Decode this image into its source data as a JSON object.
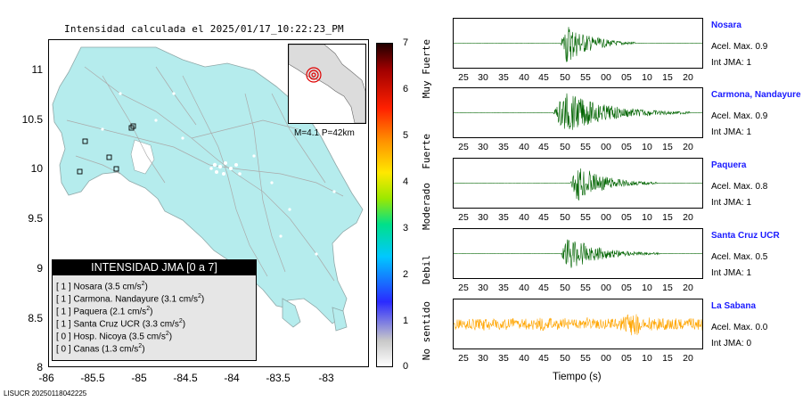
{
  "map": {
    "title": "Intensidad calculada el 2025/01/17_10:22:23_PM",
    "lat_ticks": [
      "11",
      "10.5",
      "10",
      "9.5",
      "9",
      "8.5",
      "8"
    ],
    "lon_ticks": [
      "-86",
      "-85.5",
      "-85",
      "-84.5",
      "-84",
      "-83.5",
      "-83"
    ],
    "inset_caption": "M=4.1 P=42km",
    "land_color": "#b5eced",
    "legend": {
      "header": "INTENSIDAD JMA [0 a 7]",
      "rows": [
        {
          "jma": "[ 1 ]",
          "name": "Nosara",
          "value": "(3.5 cm/s",
          "exp": "2",
          "close": ")"
        },
        {
          "jma": "[ 1 ]",
          "name": "Carmona. Nandayure",
          "value": "(3.1 cm/s",
          "exp": "2",
          "close": ")"
        },
        {
          "jma": "[ 1 ]",
          "name": "Paquera",
          "value": "(2.1 cm/s",
          "exp": "2",
          "close": ")"
        },
        {
          "jma": "[ 1 ]",
          "name": "Santa Cruz UCR",
          "value": "(3.3 cm/s",
          "exp": "2",
          "close": ")"
        },
        {
          "jma": "[ 0 ]",
          "name": "Hosp. Nicoya",
          "value": "(3.5 cm/s",
          "exp": "2",
          "close": ")"
        },
        {
          "jma": "[ 0 ]",
          "name": "Canas",
          "value": "(1.3 cm/s",
          "exp": "2",
          "close": ")"
        }
      ]
    }
  },
  "colorbar": {
    "ticks": [
      "7",
      "6",
      "5",
      "4",
      "3",
      "2",
      "1",
      "0"
    ],
    "words": [
      "Muy Fuerte",
      "Fuerte",
      "Moderado",
      "Debil",
      "No sentido"
    ]
  },
  "traces": {
    "x_ticks": [
      "25",
      "30",
      "35",
      "40",
      "45",
      "50",
      "55",
      "00",
      "05",
      "10",
      "15",
      "20"
    ],
    "x_label": "Tiempo (s)",
    "stations": [
      {
        "name": "Nosara",
        "acel": "Acel. Max. 0.9",
        "jma": "Int JMA: 1",
        "color": "#006400"
      },
      {
        "name": "Carmona, Nandayure",
        "acel": "Acel. Max. 0.9",
        "jma": "Int JMA: 1",
        "color": "#006400"
      },
      {
        "name": "Paquera",
        "acel": "Acel. Max. 0.8",
        "jma": "Int JMA: 1",
        "color": "#006400"
      },
      {
        "name": "Santa Cruz UCR",
        "acel": "Acel. Max. 0.5",
        "jma": "Int JMA: 1",
        "color": "#006400"
      },
      {
        "name": "La Sabana",
        "acel": "Acel. Max. 0.0",
        "jma": "Int JMA: 0",
        "color": "#ffa500"
      }
    ]
  },
  "footer": "LISUCR 20250118042225",
  "chart_data": [
    {
      "type": "map",
      "title": "Intensidad calculada el 2025/01/17_10:22:23_PM",
      "xlim": [
        -86,
        -82.5
      ],
      "ylim": [
        8,
        11.3
      ],
      "legend": "bottom-left"
    },
    {
      "type": "line",
      "xlabel": "Tiempo (s)",
      "series": [
        {
          "name": "Nosara",
          "peak": 0.9,
          "jma": 1
        },
        {
          "name": "Carmona, Nandayure",
          "peak": 0.9,
          "jma": 1
        },
        {
          "name": "Paquera",
          "peak": 0.8,
          "jma": 1
        },
        {
          "name": "Santa Cruz UCR",
          "peak": 0.5,
          "jma": 1
        },
        {
          "name": "La Sabana",
          "peak": 0.0,
          "jma": 0
        }
      ]
    }
  ]
}
